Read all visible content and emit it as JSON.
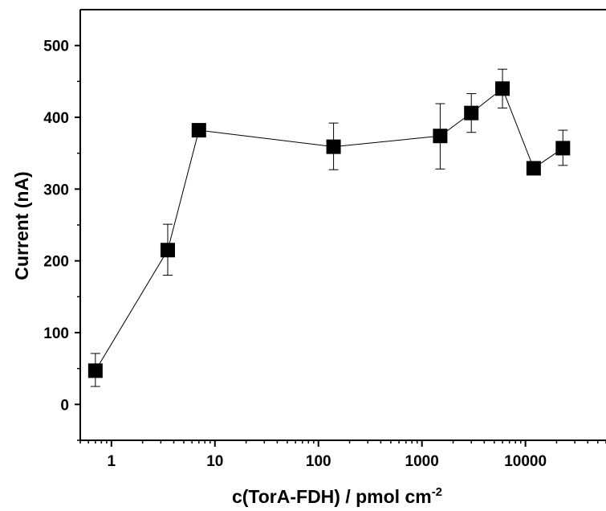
{
  "chart_data": {
    "type": "scatter",
    "title": "",
    "xlabel": "c(TorA-FDH) / pmol cm",
    "xlabel_superscript": "-2",
    "ylabel": "Current (nA)",
    "x_scale": "log",
    "xlim": [
      0.5,
      60000
    ],
    "ylim": [
      -50,
      550
    ],
    "x_ticks": [
      1,
      10,
      100,
      1000,
      10000
    ],
    "x_tick_labels": [
      "1",
      "10",
      "100",
      "1000",
      "10000"
    ],
    "y_ticks": [
      0,
      100,
      200,
      300,
      400,
      500
    ],
    "y_tick_labels": [
      "0",
      "100",
      "200",
      "300",
      "400",
      "500"
    ],
    "grid": false,
    "legend": "none",
    "marker": "square",
    "marker_color": "#000000",
    "line_color": "#000000",
    "series": [
      {
        "x": [
          0.7,
          3.5,
          7,
          140,
          1500,
          3000,
          6000,
          12000,
          23000
        ],
        "y": [
          47,
          215,
          382,
          359,
          374,
          406,
          440,
          329,
          357
        ],
        "err_low": [
          22,
          35,
          0,
          32,
          46,
          27,
          27,
          0,
          24
        ],
        "err_high": [
          24,
          36,
          0,
          33,
          45,
          27,
          27,
          0,
          25
        ]
      }
    ]
  }
}
